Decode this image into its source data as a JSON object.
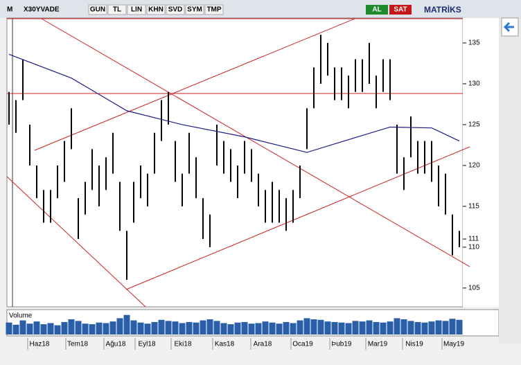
{
  "toolbar": {
    "menu": "M",
    "symbol": "X30YVADE",
    "buttons": [
      "GUN",
      "TL",
      "LIN",
      "KHN",
      "SVD",
      "SYM",
      "TMP"
    ],
    "buy": "AL",
    "sell": "SAT",
    "brand": "MATRİKS"
  },
  "chart_data": {
    "type": "ohlc",
    "color": "#000000",
    "high": [
      129,
      128,
      133,
      125,
      120,
      117,
      117,
      120,
      123,
      127,
      116,
      118,
      122,
      120,
      121,
      124,
      118,
      112,
      118,
      120,
      119,
      124,
      128,
      129,
      123,
      119,
      124,
      121,
      116,
      114,
      125,
      123,
      122,
      120,
      123,
      122,
      119,
      117,
      118,
      117,
      116,
      117,
      120,
      127,
      132,
      136,
      135,
      132,
      132,
      131,
      133,
      133,
      135,
      131,
      133,
      133,
      125,
      121,
      126,
      123,
      123,
      123,
      120,
      119,
      114,
      112
    ],
    "low": [
      125,
      124,
      128,
      120,
      116,
      113,
      113,
      116,
      118,
      122,
      111,
      114,
      117,
      115,
      117,
      119,
      112,
      106,
      113,
      116,
      115,
      119,
      123,
      125,
      118,
      115,
      119,
      116,
      111,
      110,
      120,
      119,
      118,
      116,
      119,
      118,
      115,
      113,
      113,
      113,
      112,
      113,
      116,
      122,
      127,
      130,
      131,
      128,
      128,
      127,
      129,
      129,
      130,
      127,
      129,
      128,
      119,
      117,
      121,
      119,
      119,
      118,
      115,
      114,
      109,
      110
    ],
    "ma_x": [
      0,
      9,
      17,
      25,
      34,
      43,
      48,
      55,
      61,
      65
    ],
    "ma": [
      133.6,
      130.7,
      126.7,
      125,
      123.5,
      121.6,
      122.9,
      124.7,
      124.6,
      123
    ],
    "ma_color": "#1a1a8c",
    "ylim": [
      102.7,
      138.05
    ],
    "yticks": [
      135,
      130,
      125,
      120,
      115,
      111,
      110,
      105
    ],
    "volume_label": "Volume",
    "volume": [
      220000,
      180000,
      260000,
      200000,
      240000,
      190000,
      210000,
      170000,
      230000,
      280000,
      250000,
      200000,
      190000,
      220000,
      210000,
      240000,
      300000,
      360000,
      260000,
      220000,
      200000,
      230000,
      270000,
      250000,
      240000,
      210000,
      230000,
      220000,
      260000,
      280000,
      250000,
      210000,
      190000,
      220000,
      230000,
      200000,
      210000,
      240000,
      220000,
      200000,
      230000,
      210000,
      260000,
      300000,
      280000,
      270000,
      240000,
      230000,
      220000,
      210000,
      250000,
      240000,
      260000,
      230000,
      220000,
      240000,
      300000,
      280000,
      250000,
      230000,
      220000,
      240000,
      260000,
      250000,
      290000,
      270000
    ],
    "vlim": [
      0,
      420000
    ],
    "categories": [
      "Haz18",
      "Tem18",
      "Ağu18",
      "Eyl18",
      "Eki18",
      "Kas18",
      "Ara18",
      "Oca19",
      "Þub19",
      "Mar19",
      "Nis19",
      "May19"
    ],
    "category_x": [
      4.4,
      9.9,
      15.4,
      19.9,
      25.1,
      31.1,
      36.6,
      42.4,
      48,
      53.2,
      58.5,
      64.2
    ]
  }
}
